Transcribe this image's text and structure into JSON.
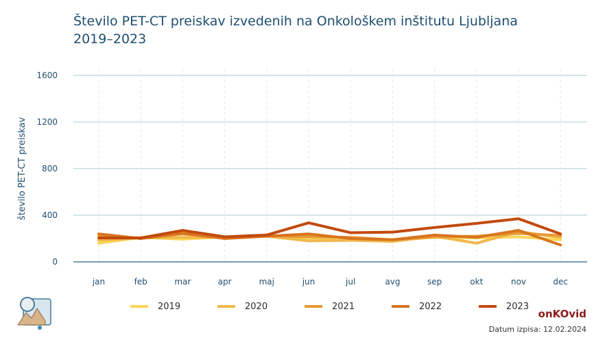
{
  "title": {
    "line1": "Število PET-CT preiskav izvedenih na Onkološkem inštitutu Ljubljana",
    "line2": "2019–2023"
  },
  "brand": "onKOvid",
  "print_date": "Datum izpisa: 12.02.2024",
  "colors": {
    "title": "#1f4e6f",
    "axis_text": "#1f4e6f",
    "grid": "#a8c8d6",
    "axis_line": "#2c5f80",
    "brand": "#8a1c1c"
  },
  "chart_data": {
    "type": "line",
    "title": "Število PET-CT preiskav izvedenih na Onkološkem inštitutu Ljubljana 2019–2023",
    "xlabel": "",
    "ylabel": "število PET-CT preiskav",
    "categories": [
      "jan",
      "feb",
      "mar",
      "apr",
      "maj",
      "jun",
      "jul",
      "avg",
      "sep",
      "okt",
      "nov",
      "dec"
    ],
    "yticks": [
      0,
      400,
      800,
      1200,
      1600
    ],
    "ylim": [
      0,
      1600
    ],
    "grid": true,
    "legend_position": "bottom",
    "series": [
      {
        "name": "2019",
        "color": "#fcd656",
        "values": [
          160,
          210,
          195,
          215,
          225,
          190,
          195,
          185,
          210,
          205,
          215,
          190
        ]
      },
      {
        "name": "2020",
        "color": "#f0b84a",
        "values": [
          185,
          205,
          210,
          210,
          220,
          180,
          185,
          175,
          220,
          160,
          260,
          210
        ]
      },
      {
        "name": "2021",
        "color": "#e69a32",
        "values": [
          220,
          205,
          240,
          210,
          225,
          215,
          210,
          190,
          215,
          220,
          245,
          225
        ]
      },
      {
        "name": "2022",
        "color": "#d9741f",
        "values": [
          240,
          200,
          245,
          200,
          220,
          240,
          200,
          190,
          230,
          210,
          270,
          145
        ]
      },
      {
        "name": "2023",
        "color": "#c24a0c",
        "values": [
          205,
          205,
          270,
          215,
          230,
          335,
          250,
          255,
          295,
          330,
          370,
          240
        ]
      }
    ]
  }
}
